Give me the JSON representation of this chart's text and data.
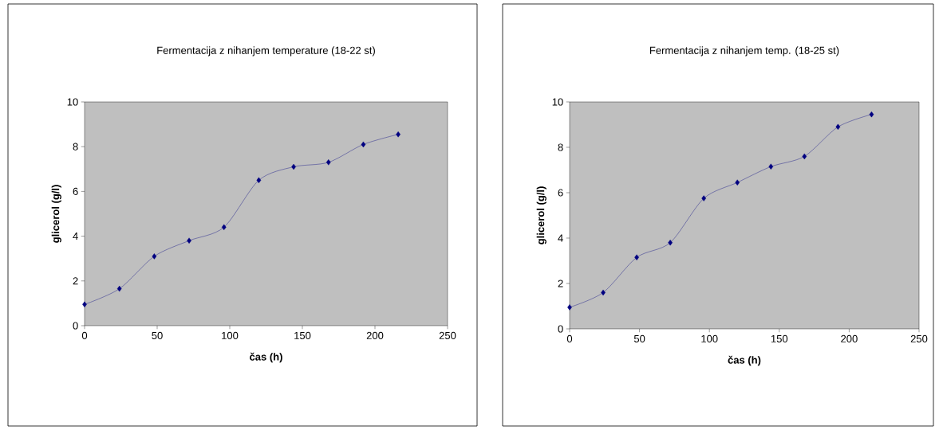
{
  "chart_data": [
    {
      "type": "line",
      "title": "Fermentacija z nihanjem temperature (18-22 st)",
      "xlabel": "čas (h)",
      "ylabel": "glicerol (g/l)",
      "x": [
        0,
        24,
        48,
        72,
        96,
        120,
        144,
        168,
        192,
        216
      ],
      "series": [
        {
          "color": "#000080",
          "values": [
            0.95,
            1.65,
            3.1,
            3.8,
            4.4,
            6.5,
            7.1,
            7.3,
            8.1,
            8.55
          ]
        }
      ],
      "xlim": [
        0,
        250
      ],
      "ylim": [
        0,
        10
      ],
      "xticks": [
        0,
        50,
        100,
        150,
        200,
        250
      ],
      "yticks": [
        0,
        2,
        4,
        6,
        8,
        10
      ],
      "marker": "diamond"
    },
    {
      "type": "line",
      "title": "Fermentacija z nihanjem temp. (18-25 st)",
      "xlabel": "čas (h)",
      "ylabel": "glicerol (g/l)",
      "x": [
        0,
        24,
        48,
        72,
        96,
        120,
        144,
        168,
        192,
        216
      ],
      "series": [
        {
          "color": "#000080",
          "values": [
            0.95,
            1.6,
            3.15,
            3.8,
            5.75,
            6.45,
            7.15,
            7.6,
            8.9,
            9.45
          ]
        }
      ],
      "xlim": [
        0,
        250
      ],
      "ylim": [
        0,
        10
      ],
      "xticks": [
        0,
        50,
        100,
        150,
        200,
        250
      ],
      "yticks": [
        0,
        2,
        4,
        6,
        8,
        10
      ],
      "marker": "diamond"
    }
  ]
}
